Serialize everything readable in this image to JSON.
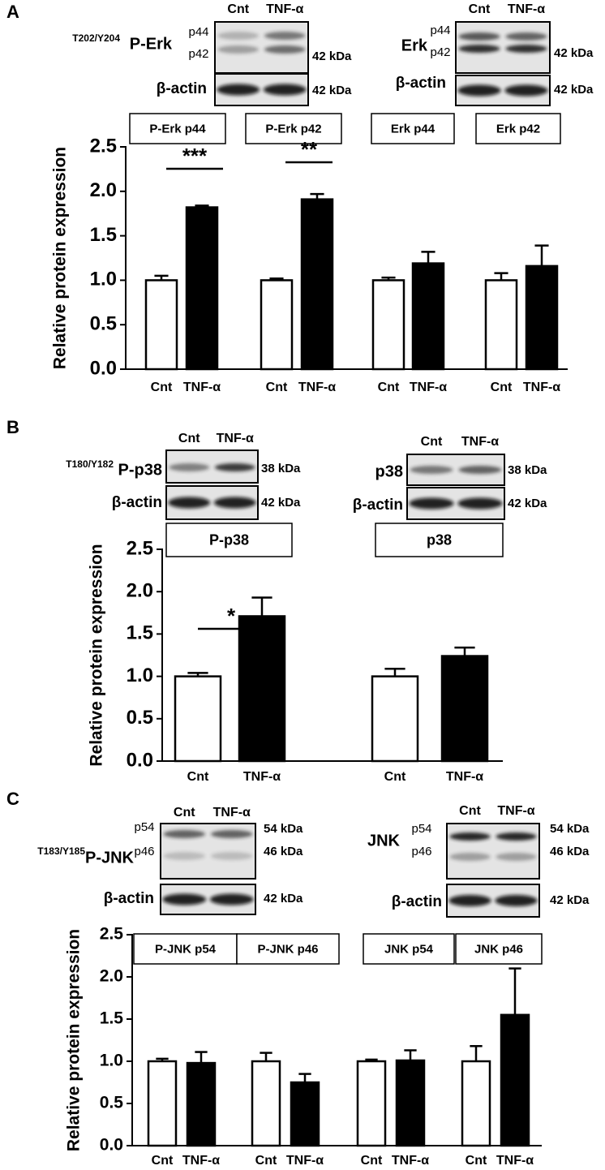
{
  "chart_data": [
    {
      "type": "bar",
      "panel": "A",
      "ylabel": "Relative protein expression",
      "categories": [
        "P-Erk p44",
        "P-Erk p42",
        "Erk p44",
        "Erk p42"
      ],
      "series": [
        {
          "name": "Cnt",
          "color": "#ffffff",
          "values": [
            1,
            1,
            1,
            1
          ],
          "errors": [
            0.05,
            0.02,
            0.03,
            0.08
          ]
        },
        {
          "name": "TNF-α",
          "color": "#000000",
          "values": [
            1.82,
            1.91,
            1.19,
            1.16
          ],
          "errors": [
            0.02,
            0.06,
            0.13,
            0.23
          ]
        }
      ],
      "ylim": [
        0,
        2.5
      ],
      "yticks": [
        {
          "value": 0,
          "label": "0.0"
        },
        0.5,
        {
          "value": 1,
          "label": "1.0"
        },
        1.5,
        {
          "value": 2,
          "label": "2.0"
        },
        2.5
      ],
      "annotations": [
        {
          "text": "***",
          "category": "P-Erk p44"
        },
        {
          "text": "**",
          "category": "P-Erk p42"
        }
      ],
      "blots": [
        {
          "superscript": "T202/Y204",
          "label": "P-Erk",
          "lanes": [
            "Cnt",
            "TNF-α"
          ],
          "bands": [
            "p44",
            "p42"
          ],
          "sizes": [
            "42 kDa"
          ],
          "control": "β-actin",
          "control_size": "42 kDa"
        },
        {
          "label": "Erk",
          "lanes": [
            "Cnt",
            "TNF-α"
          ],
          "bands": [
            "p44",
            "p42"
          ],
          "sizes": [
            "42 kDa"
          ],
          "control": "β-actin",
          "control_size": "42 kDa"
        }
      ]
    },
    {
      "type": "bar",
      "panel": "B",
      "ylabel": "Relative protein expression",
      "categories": [
        "P-p38",
        "p38"
      ],
      "series": [
        {
          "name": "Cnt",
          "color": "#ffffff",
          "values": [
            1,
            1
          ],
          "errors": [
            0.04,
            0.09
          ]
        },
        {
          "name": "TNF-α",
          "color": "#000000",
          "values": [
            1.71,
            1.24
          ],
          "errors": [
            0.22,
            0.1
          ]
        }
      ],
      "ylim": [
        0,
        2.5
      ],
      "yticks": [
        {
          "value": 0,
          "label": "0.0"
        },
        0.5,
        {
          "value": 1,
          "label": "1.0"
        },
        1.5,
        {
          "value": 2,
          "label": "2.0"
        },
        2.5
      ],
      "annotations": [
        {
          "text": "*",
          "category": "P-p38"
        }
      ],
      "blots": [
        {
          "superscript": "T180/Y182",
          "label": "P-p38",
          "lanes": [
            "Cnt",
            "TNF-α"
          ],
          "sizes": [
            "38 kDa"
          ],
          "control": "β-actin",
          "control_size": "42 kDa"
        },
        {
          "label": "p38",
          "lanes": [
            "Cnt",
            "TNF-α"
          ],
          "sizes": [
            "38 kDa"
          ],
          "control": "β-actin",
          "control_size": "42 kDa"
        }
      ]
    },
    {
      "type": "bar",
      "panel": "C",
      "ylabel": "Relative protein expression",
      "categories": [
        "P-JNK p54",
        "P-JNK p46",
        "JNK p54",
        "JNK p46"
      ],
      "series": [
        {
          "name": "Cnt",
          "color": "#ffffff",
          "values": [
            1,
            1,
            1,
            1
          ],
          "errors": [
            0.03,
            0.1,
            0.02,
            0.18
          ]
        },
        {
          "name": "TNF-α",
          "color": "#000000",
          "values": [
            0.98,
            0.75,
            1.01,
            1.55
          ],
          "errors": [
            0.13,
            0.1,
            0.12,
            0.55
          ]
        }
      ],
      "ylim": [
        0,
        2.5
      ],
      "yticks": [
        {
          "value": 0,
          "label": "0.0"
        },
        0.5,
        {
          "value": 1,
          "label": "1.0"
        },
        1.5,
        {
          "value": 2,
          "label": "2.0"
        },
        2.5
      ],
      "blots": [
        {
          "superscript": "T183/Y185",
          "label": "P-JNK",
          "lanes": [
            "Cnt",
            "TNF-α"
          ],
          "bands": [
            "p54",
            "p46"
          ],
          "sizes": [
            "54 kDa",
            "46 kDa"
          ],
          "control": "β-actin",
          "control_size": "42 kDa"
        },
        {
          "label": "JNK",
          "lanes": [
            "Cnt",
            "TNF-α"
          ],
          "bands": [
            "p54",
            "p46"
          ],
          "sizes": [
            "54 kDa",
            "46 kDa"
          ],
          "control": "β-actin",
          "control_size": "42 kDa"
        }
      ]
    }
  ]
}
